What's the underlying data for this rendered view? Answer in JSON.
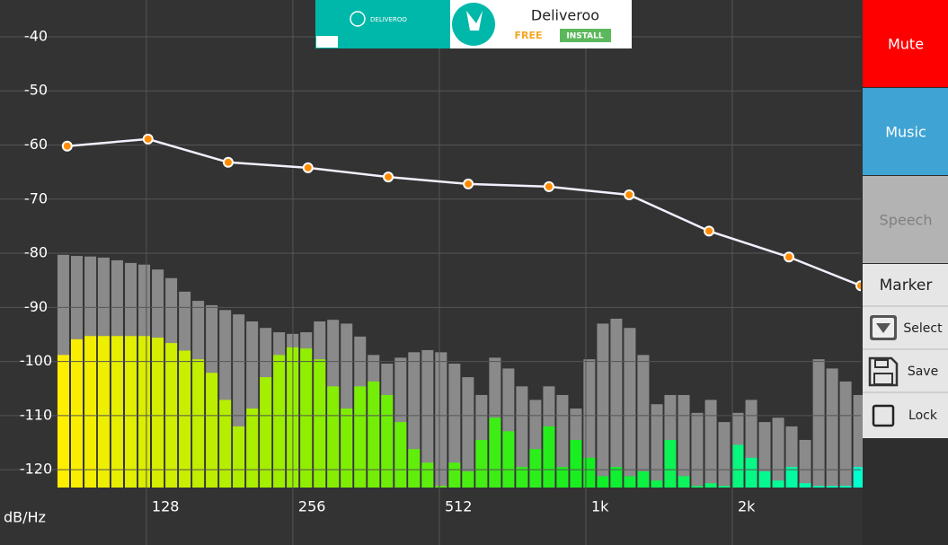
{
  "ad": {
    "brand": "DELIVEROO",
    "title": "Deliveroo",
    "price": "FREE",
    "button": "INSTALL"
  },
  "controls": {
    "mode_buttons": [
      "Mute",
      "Music",
      "Speech"
    ],
    "mode_colors": [
      "#ff0000",
      "#3fa3d4",
      "#b3b3b3"
    ],
    "mode_text_colors": [
      "#ffffff",
      "#ffffff",
      "#808080"
    ],
    "marker_title": "Marker",
    "marker_actions": [
      "Select",
      "Save",
      "Lock"
    ]
  },
  "chart_data": {
    "type": "spectrum",
    "axis_label": "dB/Hz",
    "xscale": "log",
    "xlim": [
      83.7,
      3762
    ],
    "xticks": [
      128,
      256,
      512,
      {
        "value": 1024,
        "label": "1k"
      },
      {
        "value": 2048,
        "label": "2k"
      }
    ],
    "ylim": [
      -123.3,
      -33.2
    ],
    "yticks": [
      -40,
      -50,
      -60,
      -70,
      -80,
      -90,
      -100,
      -110,
      -120
    ],
    "grid": true,
    "curve": {
      "color": "#f2f0ff",
      "marker_color": "#ff8c00",
      "x": [
        88,
        129,
        188.5,
        275,
        402,
        587,
        860,
        1257,
        1834,
        2677,
        3762
      ],
      "values": [
        -60.2,
        -58.9,
        -63.2,
        -64.2,
        -65.9,
        -67.2,
        -67.7,
        -69.2,
        -75.9,
        -80.7,
        -86.0
      ]
    },
    "bars": {
      "peak_color": "#8a8a8a",
      "level_colors": [
        "#ffee00",
        "#88ee00",
        "#11ee22",
        "#00ffcc"
      ],
      "x": [
        86.4,
        92.1,
        98.2,
        104.6,
        111.5,
        118.9,
        126.7,
        135.1,
        144.0,
        153.5,
        163.6,
        174.4,
        185.9,
        198.1,
        211.2,
        225.1,
        239.9,
        255.7,
        272.6,
        290.6,
        309.7,
        330.1,
        351.9,
        375.1,
        399.8,
        426.2,
        454.2,
        484.2,
        516.1,
        550.1,
        586.4,
        625.0,
        666.2,
        710.1,
        756.9,
        806.8,
        860.0,
        916.7,
        977.1,
        1041,
        1110,
        1183,
        1261,
        1344,
        1433,
        1527,
        1628,
        1735,
        1850,
        1971,
        2101,
        2240,
        2387,
        2545,
        2712,
        2891,
        3082,
        3285,
        3501,
        3732
      ],
      "peak": [
        -80.3,
        -80.5,
        -80.6,
        -80.8,
        -81.3,
        -81.8,
        -82.1,
        -83.0,
        -84.6,
        -87.1,
        -88.8,
        -89.6,
        -90.5,
        -91.3,
        -92.6,
        -93.8,
        -94.6,
        -94.9,
        -94.6,
        -92.6,
        -92.3,
        -93.0,
        -95.4,
        -98.8,
        -100.4,
        -99.3,
        -98.3,
        -97.9,
        -98.3,
        -100.4,
        -102.9,
        -106.2,
        -99.3,
        -101.3,
        -104.6,
        -107.1,
        -104.6,
        -106.2,
        -108.7,
        -99.6,
        -93.0,
        -92.1,
        -93.8,
        -98.8,
        -107.9,
        -106.2,
        -106.2,
        -109.5,
        -107.1,
        -111.2,
        -109.5,
        -107.1,
        -111.2,
        -110.4,
        -112.0,
        -114.5,
        -99.6,
        -101.3,
        -103.7,
        -106.2
      ],
      "level": [
        -98.8,
        -95.9,
        -95.3,
        -95.3,
        -95.3,
        -95.3,
        -95.3,
        -95.6,
        -96.6,
        -98.0,
        -99.6,
        -102.1,
        -107.1,
        -112.0,
        -108.7,
        -102.9,
        -98.8,
        -97.4,
        -97.6,
        -99.6,
        -104.6,
        -108.7,
        -104.6,
        -103.7,
        -106.2,
        -111.2,
        -116.2,
        -118.7,
        -123.0,
        -118.7,
        -120.3,
        -114.5,
        -110.4,
        -112.9,
        -119.5,
        -116.2,
        -112.0,
        -119.5,
        -114.5,
        -117.8,
        -121.2,
        -119.5,
        -121.2,
        -120.3,
        -122.0,
        -114.5,
        -121.2,
        -123.0,
        -122.5,
        -123.0,
        -115.4,
        -117.8,
        -120.3,
        -122.0,
        -119.5,
        -122.5,
        -123.0,
        -123.0,
        -123.0,
        -119.5
      ]
    }
  }
}
